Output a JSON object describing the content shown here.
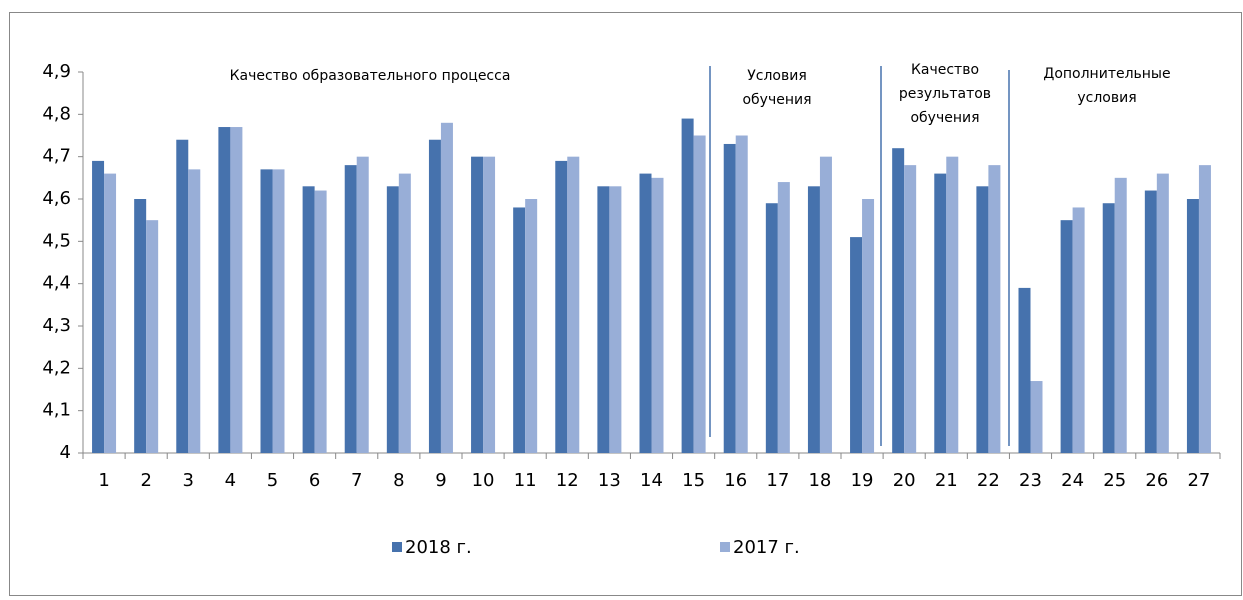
{
  "chart_data": {
    "type": "bar",
    "categories": [
      "1",
      "2",
      "3",
      "4",
      "5",
      "6",
      "7",
      "8",
      "9",
      "10",
      "11",
      "12",
      "13",
      "14",
      "15",
      "16",
      "17",
      "18",
      "19",
      "20",
      "21",
      "22",
      "23",
      "24",
      "25",
      "26",
      "27"
    ],
    "series": [
      {
        "name": "2018 г.",
        "color": "#4672ad",
        "values": [
          4.69,
          4.6,
          4.74,
          4.77,
          4.67,
          4.63,
          4.68,
          4.63,
          4.74,
          4.7,
          4.58,
          4.69,
          4.63,
          4.66,
          4.79,
          4.73,
          4.59,
          4.63,
          4.51,
          4.72,
          4.66,
          4.63,
          4.39,
          4.55,
          4.59,
          4.62,
          4.6
        ]
      },
      {
        "name": "2017 г.",
        "color": "#98aed7",
        "values": [
          4.66,
          4.55,
          4.67,
          4.77,
          4.67,
          4.62,
          4.7,
          4.66,
          4.78,
          4.7,
          4.6,
          4.7,
          4.63,
          4.65,
          4.75,
          4.75,
          4.64,
          4.7,
          4.6,
          4.68,
          4.7,
          4.68,
          4.17,
          4.58,
          4.65,
          4.66,
          4.68
        ]
      }
    ],
    "ylim": [
      4,
      4.9
    ],
    "yticks": [
      4,
      {
        "value": 4.1,
        "label": "4,1"
      },
      {
        "value": 4.2,
        "label": "4,2"
      },
      {
        "value": 4.3,
        "label": "4,3"
      },
      {
        "value": 4.4,
        "label": "4,4"
      },
      {
        "value": 4.5,
        "label": "4,5"
      },
      {
        "value": 4.6,
        "label": "4,6"
      },
      {
        "value": 4.7,
        "label": "4,7"
      },
      {
        "value": 4.8,
        "label": "4,8"
      },
      {
        "value": 4.9,
        "label": "4,9"
      }
    ],
    "grid": false,
    "annotations": [
      {
        "lines": [
          "Качество образовательного процесса"
        ]
      },
      {
        "lines": [
          "Условия",
          "обучения"
        ]
      },
      {
        "lines": [
          "Качество",
          "результатов",
          "обучения"
        ]
      },
      {
        "lines": [
          "Дополнительные",
          "условия"
        ]
      }
    ]
  }
}
